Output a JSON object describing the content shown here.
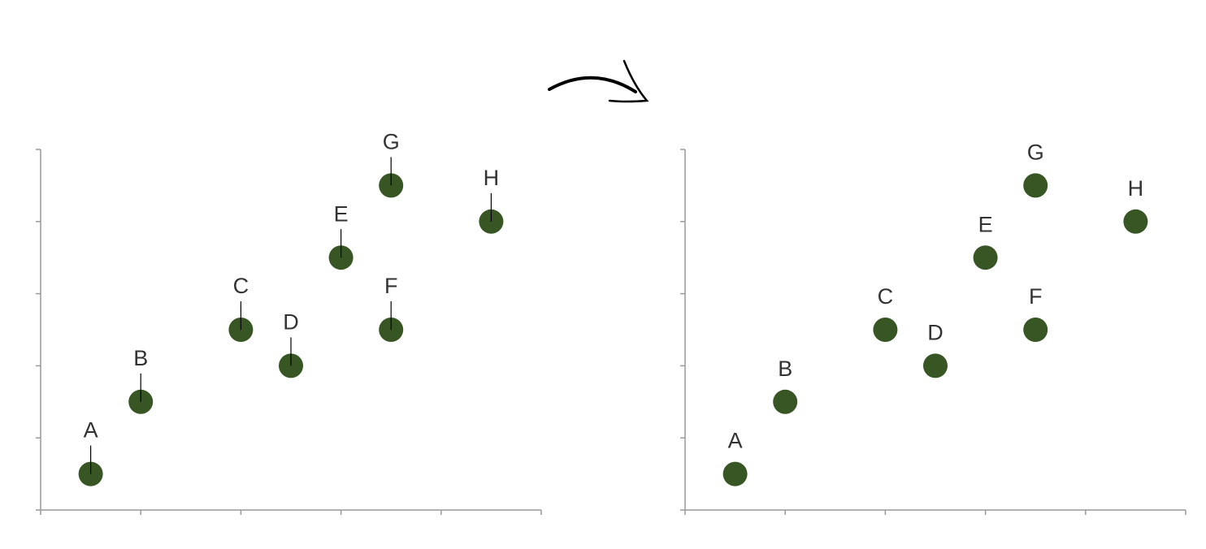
{
  "chart_data": [
    {
      "type": "scatter",
      "x": [
        0.5,
        1,
        2,
        2.5,
        3,
        3.5,
        3.5,
        4.5
      ],
      "y": [
        0.5,
        1.5,
        2.5,
        2,
        3.5,
        2.5,
        4.5,
        4
      ],
      "point_labels": [
        "A",
        "B",
        "C",
        "D",
        "E",
        "F",
        "G",
        "H"
      ],
      "color": "#375623",
      "xlim": [
        0,
        5
      ],
      "ylim": [
        0,
        5
      ],
      "xticks": [
        0,
        1,
        2,
        3,
        4,
        5
      ],
      "yticks": [
        0,
        1,
        2,
        3,
        4,
        5
      ],
      "leader_lines": true
    },
    {
      "type": "scatter",
      "x": [
        0.5,
        1,
        2,
        2.5,
        3,
        3.5,
        3.5,
        4.5
      ],
      "y": [
        0.5,
        1.5,
        2.5,
        2,
        3.5,
        2.5,
        4.5,
        4
      ],
      "point_labels": [
        "A",
        "B",
        "C",
        "D",
        "E",
        "F",
        "G",
        "H"
      ],
      "color": "#375623",
      "xlim": [
        0,
        5
      ],
      "ylim": [
        0,
        5
      ],
      "xticks": [
        0,
        1,
        2,
        3,
        4,
        5
      ],
      "yticks": [
        0,
        1,
        2,
        3,
        4,
        5
      ],
      "leader_lines": false
    }
  ]
}
